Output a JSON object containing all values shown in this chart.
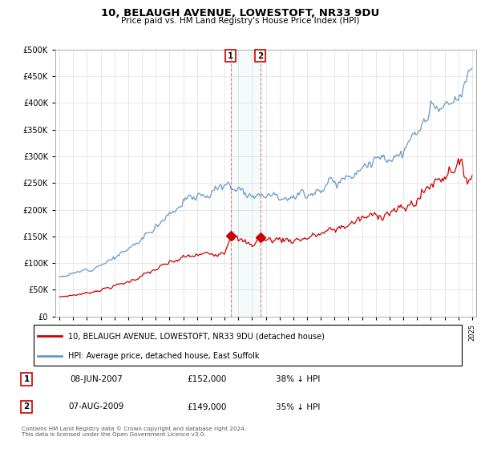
{
  "title": "10, BELAUGH AVENUE, LOWESTOFT, NR33 9DU",
  "subtitle": "Price paid vs. HM Land Registry's House Price Index (HPI)",
  "legend_property": "10, BELAUGH AVENUE, LOWESTOFT, NR33 9DU (detached house)",
  "legend_hpi": "HPI: Average price, detached house, East Suffolk",
  "footer": "Contains HM Land Registry data © Crown copyright and database right 2024.\nThis data is licensed under the Open Government Licence v3.0.",
  "sale_1": {
    "label": "1",
    "date": "08-JUN-2007",
    "price": "£152,000",
    "pct": "38% ↓ HPI",
    "x": 2007.44
  },
  "sale_2": {
    "label": "2",
    "date": "07-AUG-2009",
    "price": "£149,000",
    "pct": "35% ↓ HPI",
    "x": 2009.6
  },
  "property_color": "#cc0000",
  "hpi_color": "#6699cc",
  "marker_box_color": "#cc0000",
  "ylim": [
    0,
    500000
  ],
  "yticks": [
    0,
    50000,
    100000,
    150000,
    200000,
    250000,
    300000,
    350000,
    400000,
    450000,
    500000
  ],
  "sale1_price": 152000,
  "sale2_price": 149000,
  "sale1_x": 2007.44,
  "sale2_x": 2009.6,
  "xtick_years": [
    1995,
    1996,
    1997,
    1998,
    1999,
    2000,
    2001,
    2002,
    2003,
    2004,
    2005,
    2006,
    2007,
    2008,
    2009,
    2010,
    2011,
    2012,
    2013,
    2014,
    2015,
    2016,
    2017,
    2018,
    2019,
    2020,
    2021,
    2022,
    2023,
    2024,
    2025
  ]
}
